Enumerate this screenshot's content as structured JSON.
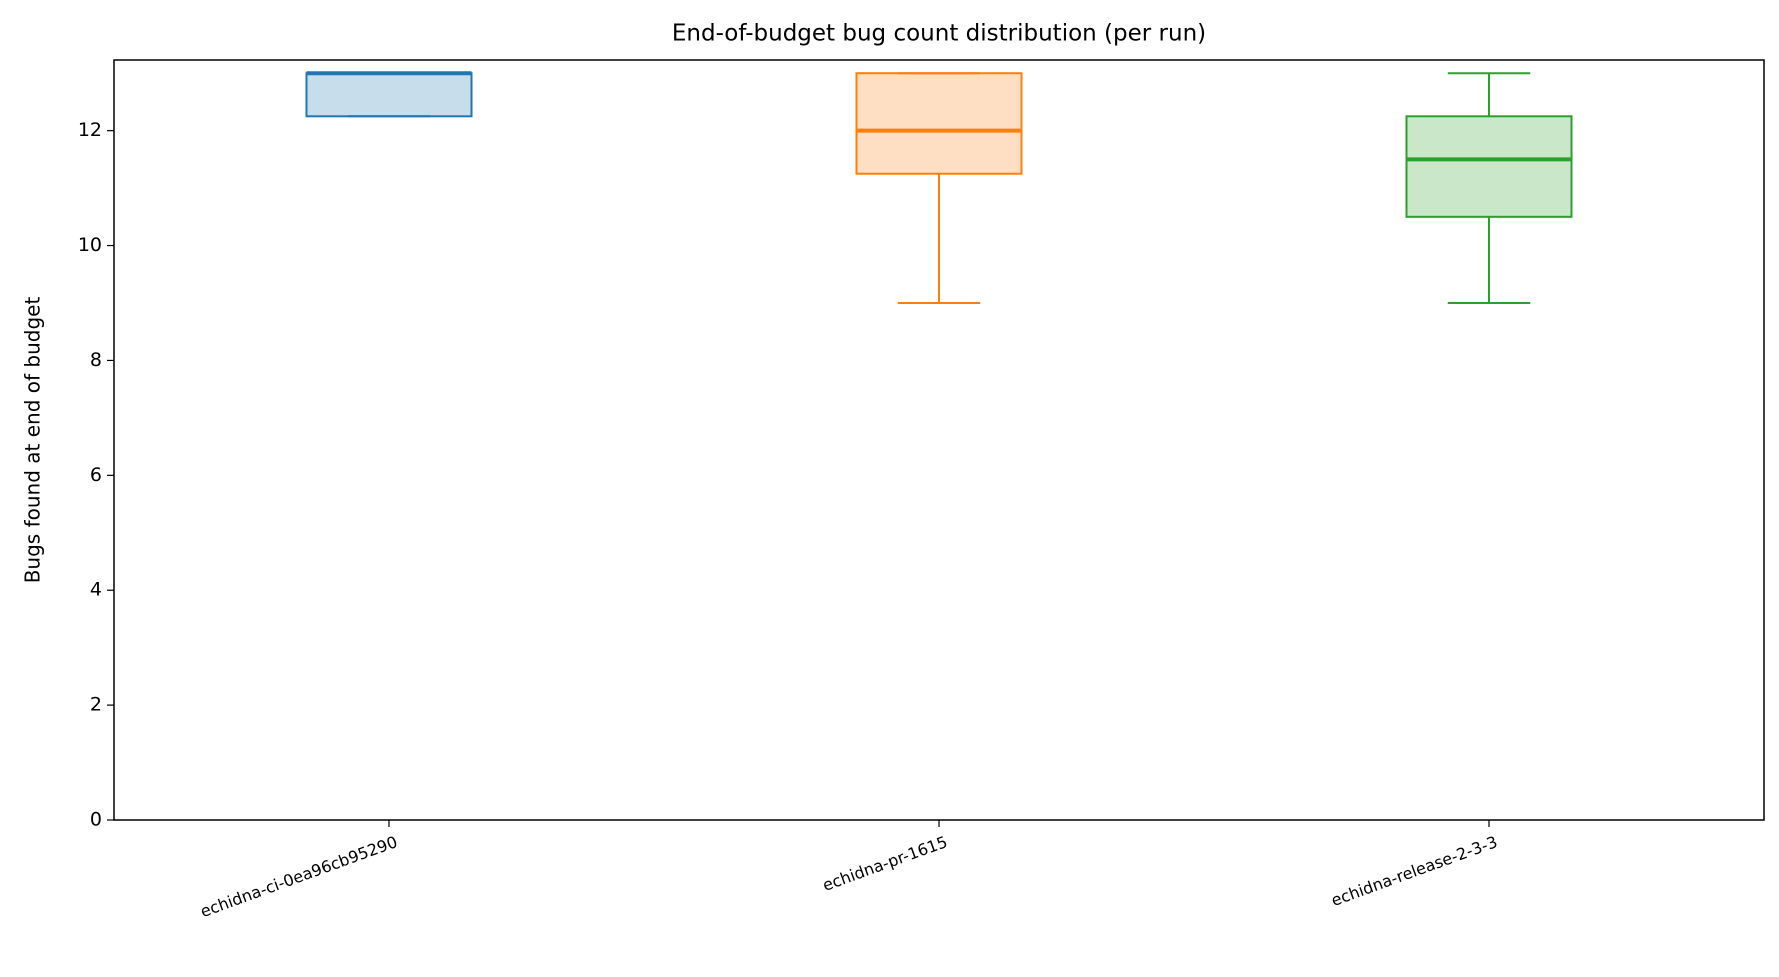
{
  "chart_data": {
    "type": "box",
    "title": "End-of-budget bug count distribution (per run)",
    "ylabel": "Bugs found at end of budget",
    "categories": [
      "echidna-ci-0ea96cb95290",
      "echidna-pr-1615",
      "echidna-release-2-3-3"
    ],
    "boxes": [
      {
        "color": "#1f77b4",
        "min": 12.25,
        "q1": 12.25,
        "median": 13,
        "q3": 13,
        "max": 13
      },
      {
        "color": "#ff7f0e",
        "min": 9,
        "q1": 11.25,
        "median": 12,
        "q3": 13,
        "max": 13
      },
      {
        "color": "#2ca02c",
        "min": 9,
        "q1": 10.5,
        "median": 11.5,
        "q3": 12.25,
        "max": 13
      }
    ],
    "ylim": [
      0,
      13.23
    ],
    "yticks": [
      0,
      2,
      4,
      6,
      8,
      10,
      12
    ]
  }
}
